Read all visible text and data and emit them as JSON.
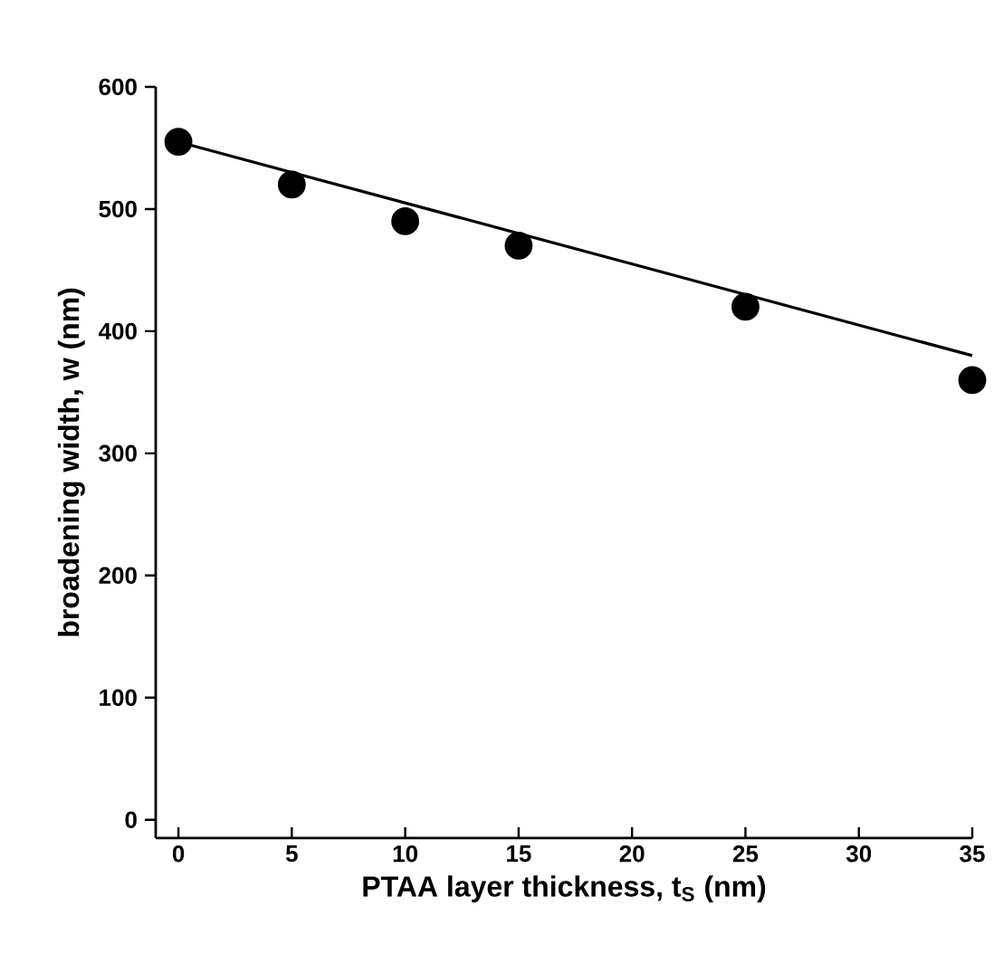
{
  "chart_data": {
    "type": "scatter",
    "xlabel": "PTAA layer thickness, t$_{S}$ (nm)",
    "ylabel": "broadening width, w (nm)",
    "xlim": [
      -1,
      35
    ],
    "ylim": [
      -15,
      600
    ],
    "xticks": [
      0,
      5,
      10,
      15,
      20,
      25,
      30,
      35
    ],
    "yticks": [
      0,
      100,
      200,
      300,
      400,
      500,
      600
    ],
    "grid": false,
    "series": [
      {
        "color": "#000000",
        "marker": "circle",
        "x": [
          0,
          5,
          10,
          15,
          25,
          35
        ],
        "values": [
          555,
          520,
          490,
          470,
          420,
          360
        ]
      },
      {
        "type": "line",
        "color": "#000000",
        "line_style": "solid",
        "marker": "none",
        "x": [
          0,
          35
        ],
        "values": [
          555,
          380
        ]
      }
    ]
  }
}
